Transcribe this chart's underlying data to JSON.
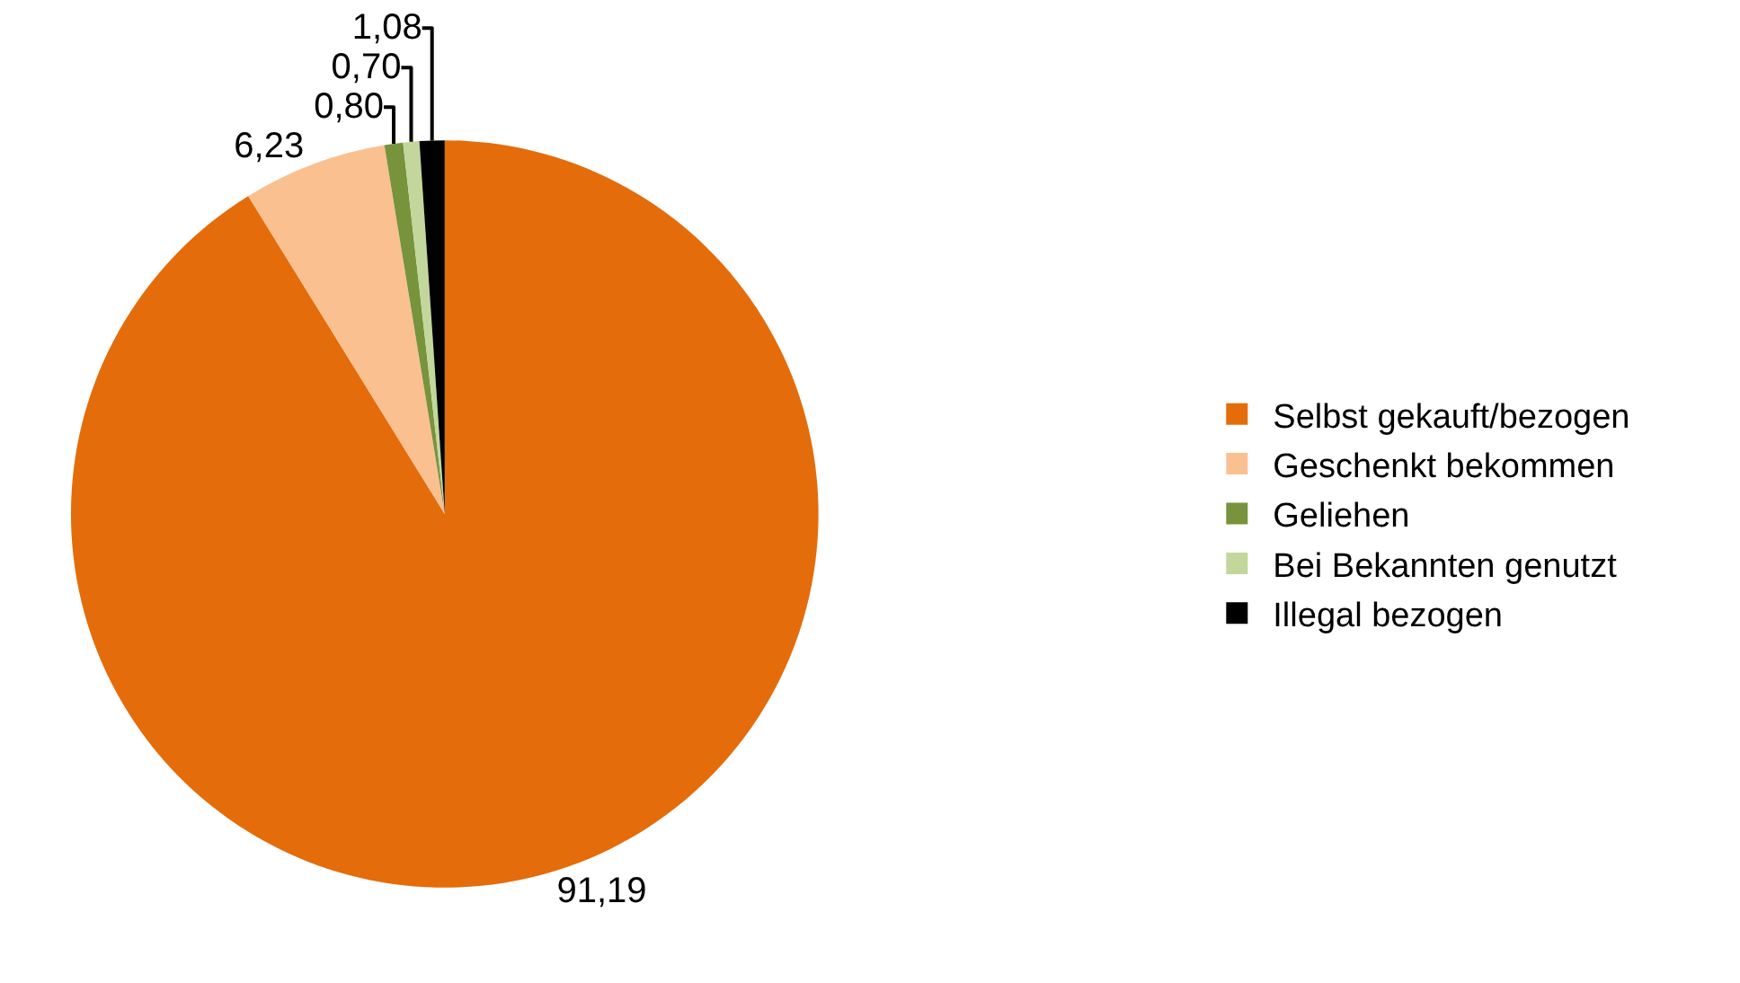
{
  "chart_data": {
    "type": "pie",
    "categories": [
      "Selbst gekauft/bezogen",
      "Geschenkt bekommen",
      "Geliehen",
      "Bei Bekannten genutzt",
      "Illegal bezogen"
    ],
    "values": [
      91.19,
      6.23,
      0.8,
      0.7,
      1.08
    ],
    "value_labels": [
      "91,19",
      "6,23",
      "0,80",
      "0,70",
      "1,08"
    ],
    "colors": [
      "#e46c0a",
      "#fac090",
      "#77933c",
      "#c3d69b",
      "#000000"
    ],
    "legend": "right"
  }
}
